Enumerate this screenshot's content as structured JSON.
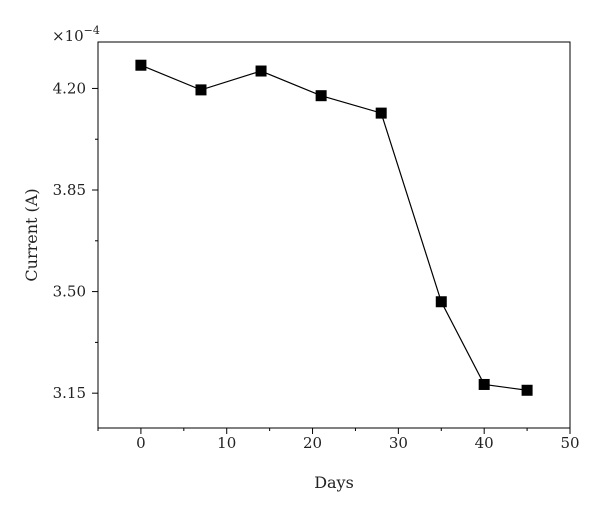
{
  "chart_data": {
    "type": "line",
    "xlabel": "Days",
    "ylabel": "Current (A)",
    "y_multiplier": "×10",
    "y_multiplier_exponent": "−4",
    "xlim": [
      -5,
      50
    ],
    "ylim": [
      3.03,
      4.36
    ],
    "x_ticks": [
      0,
      10,
      20,
      30,
      40,
      50
    ],
    "x_tick_labels": [
      "0",
      "10",
      "20",
      "30",
      "40",
      "50"
    ],
    "y_ticks": [
      3.15,
      3.5,
      3.85,
      4.2
    ],
    "y_tick_labels": [
      "3.15",
      "3.50",
      "3.85",
      "4.20"
    ],
    "grid": false,
    "series": [
      {
        "marker": "square",
        "color": "#000000",
        "x": [
          0,
          7,
          14,
          21,
          28,
          35,
          40,
          45
        ],
        "y": [
          4.28,
          4.195,
          4.26,
          4.175,
          4.115,
          3.465,
          3.18,
          3.16
        ]
      }
    ]
  }
}
